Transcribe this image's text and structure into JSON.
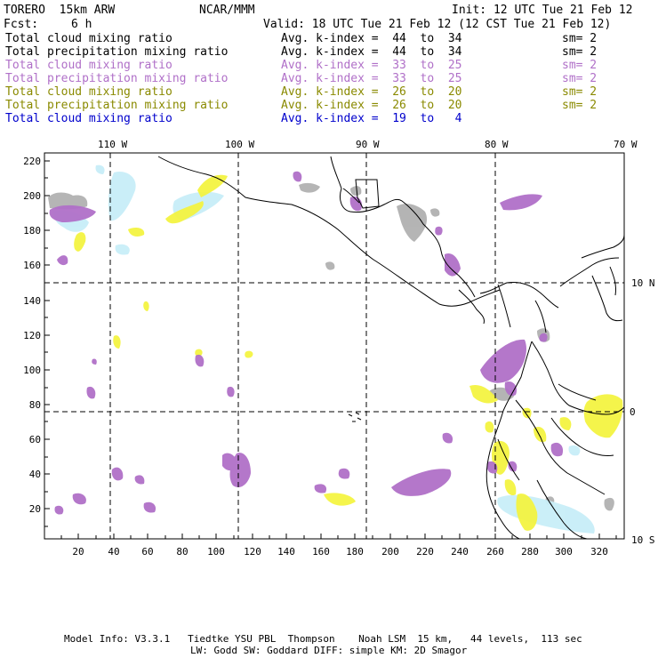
{
  "header": {
    "model": "TORERO  15km ARW",
    "center": "NCAR/MMM",
    "init": "Init: 12 UTC Tue 21 Feb 12",
    "fcst_label": "Fcst:",
    "fcst_value": "6 h",
    "valid": "Valid: 18 UTC Tue 21 Feb 12 (12 CST Tue 21 Feb 12)"
  },
  "legend": [
    {
      "field": "Total cloud mixing ratio",
      "index": "Avg. k-index =  44  to  34",
      "sm": "sm= 2",
      "color": "#000000"
    },
    {
      "field": "Total precipitation mixing ratio",
      "index": "Avg. k-index =  44  to  34",
      "sm": "sm= 2",
      "color": "#000000"
    },
    {
      "field": "Total cloud mixing ratio",
      "index": "Avg. k-index =  33  to  25",
      "sm": "sm= 2",
      "color": "#b070c8"
    },
    {
      "field": "Total precipitation mixing ratio",
      "index": "Avg. k-index =  33  to  25",
      "sm": "sm= 2",
      "color": "#b070c8"
    },
    {
      "field": "Total cloud mixing ratio",
      "index": "Avg. k-index =  26  to  20",
      "sm": "sm= 2",
      "color": "#8a8a00"
    },
    {
      "field": "Total precipitation mixing ratio",
      "index": "Avg. k-index =  26  to  20",
      "sm": "sm= 2",
      "color": "#8a8a00"
    },
    {
      "field": "Total cloud mixing ratio",
      "index": "Avg. k-index =  19  to   4",
      "sm": "",
      "color": "#0000cc"
    }
  ],
  "map": {
    "lon_labels": [
      "110 W",
      "100 W",
      "90 W",
      "80 W",
      "70 W"
    ],
    "lat_labels": [
      "10 N",
      "0",
      "10 S"
    ],
    "grid_x_labels": [
      "20",
      "40",
      "60",
      "80",
      "100",
      "120",
      "140",
      "160",
      "180",
      "200",
      "220",
      "240",
      "260",
      "280",
      "300",
      "320"
    ],
    "grid_y_labels": [
      "220",
      "200",
      "180",
      "160",
      "140",
      "120",
      "100",
      "80",
      "60",
      "40",
      "20"
    ],
    "colors": {
      "gray": "#a8a8a8",
      "purple": "#b070c8",
      "yellow": "#f4f442",
      "lightblue": "#c8eef8"
    }
  },
  "footer": {
    "line1": "Model Info: V3.3.1   Tiedtke YSU PBL  Thompson    Noah LSM  15 km,   44 levels,  113 sec",
    "line2": "LW: Godd SW: Goddard DIFF: simple KM: 2D Smagor"
  }
}
